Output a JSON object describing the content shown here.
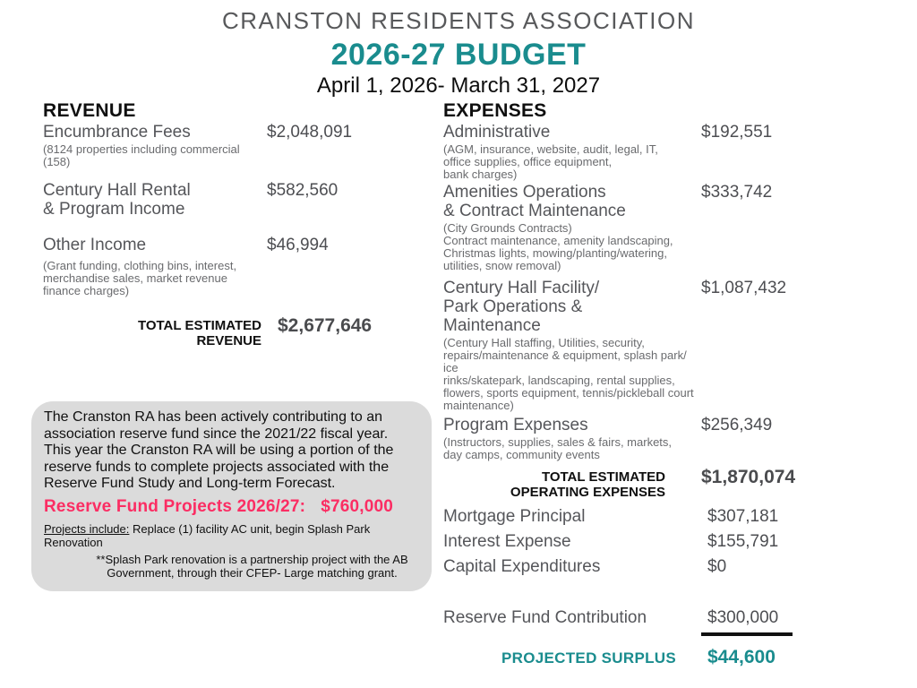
{
  "header": {
    "org": "CRANSTON RESIDENTS ASSOCIATION",
    "title": "2026-27 BUDGET",
    "date_range": "April 1, 2026- March 31, 2027"
  },
  "revenue": {
    "heading": "REVENUE",
    "items": [
      {
        "label": "Encumbrance Fees",
        "desc": "(8124 properties including commercial\n(158)",
        "value": "$2,048,091"
      },
      {
        "label": "Century Hall Rental\n& Program Income",
        "desc": "",
        "value": "$582,560"
      },
      {
        "label": "Other Income",
        "desc": "(Grant funding, clothing bins, interest,\nmerchandise sales, market revenue\nfinance charges)",
        "value": "$46,994"
      }
    ],
    "total_label": "TOTAL ESTIMATED\nREVENUE",
    "total_value": "$2,677,646"
  },
  "expenses": {
    "heading": "EXPENSES",
    "items": [
      {
        "label": "Administrative",
        "desc": "(AGM, insurance, website, audit, legal, IT,\noffice supplies, office equipment,\nbank charges)",
        "value": "$192,551"
      },
      {
        "label": "Amenities Operations\n& Contract Maintenance",
        "desc": "(City Grounds Contracts)\nContract maintenance, amenity landscaping,\nChristmas lights, mowing/planting/watering,\nutilities, snow removal)",
        "value": "$333,742"
      },
      {
        "label": "Century Hall Facility/\nPark Operations &\nMaintenance",
        "desc": "(Century Hall staffing, Utilities, security,\nrepairs/maintenance & equipment, splash park/ ice\nrinks/skatepark, landscaping, rental supplies,\nflowers, sports equipment, tennis/pickleball court\nmaintenance)",
        "value": "$1,087,432"
      },
      {
        "label": "Program Expenses",
        "desc": "(Instructors, supplies, sales & fairs, markets,\nday camps, community events",
        "value": "$256,349"
      }
    ],
    "total_label": "TOTAL ESTIMATED\nOPERATING EXPENSES",
    "total_value": "$1,870,074",
    "simple_items": [
      {
        "label": "Mortgage Principal",
        "value": "$307,181"
      },
      {
        "label": "Interest Expense",
        "value": "$155,791"
      },
      {
        "label": "Capital Expenditures",
        "value": "$0"
      }
    ],
    "reserve_row": {
      "label": "Reserve Fund Contribution",
      "value": "$300,000"
    },
    "surplus_label": "PROJECTED SURPLUS",
    "surplus_value": "$44,600"
  },
  "note_box": {
    "paragraph": "The Cranston RA has been actively contributing to an\nassociation reserve fund since the 2021/22 fiscal year.\nThis year the Cranston RA will be using a portion of the\nreserve funds to complete projects associated with the\nReserve Fund Study and Long-term Forecast.",
    "highlight_label": "Reserve Fund Projects 2026/27:",
    "highlight_value": "$760,000",
    "projects_label": "Projects include:",
    "projects_text": " Replace (1) facility AC unit, begin Splash Park Renovation",
    "footnote": "**Splash Park renovation is a partnership project with the AB\nGovernment, through their CFEP- Large matching grant."
  },
  "colors": {
    "teal": "#1A8C8E",
    "pink": "#FB2D63"
  }
}
